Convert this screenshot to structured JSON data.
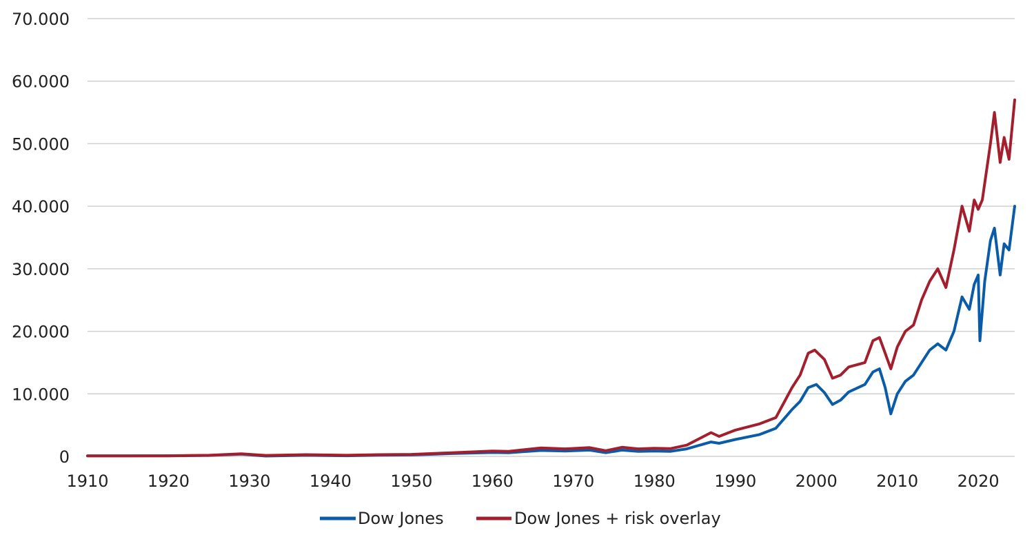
{
  "chart_data": {
    "type": "line",
    "title": "",
    "xlabel": "",
    "ylabel": "",
    "xlim": [
      1910,
      2024.5
    ],
    "ylim": [
      0,
      70000
    ],
    "grid": true,
    "legend_position": "bottom",
    "y_ticks": [
      0,
      10000,
      20000,
      30000,
      40000,
      50000,
      60000,
      70000
    ],
    "y_tick_labels": [
      "0",
      "10.000",
      "20.000",
      "30.000",
      "40.000",
      "50.000",
      "60.000",
      "70.000"
    ],
    "x_ticks": [
      1910,
      1920,
      1930,
      1940,
      1950,
      1960,
      1970,
      1980,
      1990,
      2000,
      2010,
      2020
    ],
    "x_tick_labels": [
      "1910",
      "1920",
      "1930",
      "1940",
      "1950",
      "1960",
      "1970",
      "1980",
      "1990",
      "2000",
      "2010",
      "2020"
    ],
    "series": [
      {
        "name": "Dow Jones",
        "color": "#0a5ca8",
        "points": [
          [
            1910,
            80
          ],
          [
            1915,
            75
          ],
          [
            1920,
            85
          ],
          [
            1925,
            150
          ],
          [
            1929,
            350
          ],
          [
            1932,
            60
          ],
          [
            1937,
            180
          ],
          [
            1942,
            100
          ],
          [
            1946,
            190
          ],
          [
            1950,
            230
          ],
          [
            1955,
            450
          ],
          [
            1960,
            620
          ],
          [
            1962,
            580
          ],
          [
            1966,
            950
          ],
          [
            1969,
            850
          ],
          [
            1972,
            1000
          ],
          [
            1974,
            580
          ],
          [
            1976,
            1000
          ],
          [
            1978,
            800
          ],
          [
            1980,
            850
          ],
          [
            1982,
            800
          ],
          [
            1984,
            1200
          ],
          [
            1987,
            2300
          ],
          [
            1988,
            2100
          ],
          [
            1990,
            2700
          ],
          [
            1993,
            3500
          ],
          [
            1995,
            4500
          ],
          [
            1997,
            7500
          ],
          [
            1998,
            8800
          ],
          [
            1999,
            11000
          ],
          [
            2000,
            11500
          ],
          [
            2001,
            10200
          ],
          [
            2002,
            8300
          ],
          [
            2003,
            9000
          ],
          [
            2004,
            10300
          ],
          [
            2006,
            11500
          ],
          [
            2007,
            13500
          ],
          [
            2007.8,
            14000
          ],
          [
            2008.5,
            11000
          ],
          [
            2009.2,
            6800
          ],
          [
            2010,
            10000
          ],
          [
            2011,
            12000
          ],
          [
            2012,
            13000
          ],
          [
            2013,
            15000
          ],
          [
            2014,
            17000
          ],
          [
            2015,
            18000
          ],
          [
            2016,
            17000
          ],
          [
            2017,
            20000
          ],
          [
            2018,
            25500
          ],
          [
            2018.9,
            23500
          ],
          [
            2019.5,
            27500
          ],
          [
            2020.0,
            29000
          ],
          [
            2020.2,
            18500
          ],
          [
            2020.8,
            28000
          ],
          [
            2021.5,
            34500
          ],
          [
            2022.0,
            36500
          ],
          [
            2022.7,
            29000
          ],
          [
            2023.2,
            34000
          ],
          [
            2023.8,
            33000
          ],
          [
            2024.5,
            40000
          ]
        ]
      },
      {
        "name": "Dow Jones + risk overlay",
        "color": "#a31f2e",
        "points": [
          [
            1910,
            90
          ],
          [
            1915,
            85
          ],
          [
            1920,
            95
          ],
          [
            1925,
            180
          ],
          [
            1929,
            420
          ],
          [
            1932,
            150
          ],
          [
            1937,
            280
          ],
          [
            1942,
            180
          ],
          [
            1946,
            280
          ],
          [
            1950,
            320
          ],
          [
            1955,
            580
          ],
          [
            1960,
            850
          ],
          [
            1962,
            800
          ],
          [
            1966,
            1350
          ],
          [
            1969,
            1200
          ],
          [
            1972,
            1400
          ],
          [
            1974,
            900
          ],
          [
            1976,
            1450
          ],
          [
            1978,
            1200
          ],
          [
            1980,
            1300
          ],
          [
            1982,
            1250
          ],
          [
            1984,
            1800
          ],
          [
            1987,
            3800
          ],
          [
            1988,
            3200
          ],
          [
            1990,
            4200
          ],
          [
            1993,
            5200
          ],
          [
            1995,
            6200
          ],
          [
            1997,
            11000
          ],
          [
            1998,
            13000
          ],
          [
            1999,
            16500
          ],
          [
            1999.8,
            17000
          ],
          [
            2001,
            15500
          ],
          [
            2002,
            12500
          ],
          [
            2003,
            13000
          ],
          [
            2004,
            14300
          ],
          [
            2006,
            15000
          ],
          [
            2007,
            18500
          ],
          [
            2007.8,
            19000
          ],
          [
            2008.5,
            16500
          ],
          [
            2009.2,
            14000
          ],
          [
            2010,
            17500
          ],
          [
            2011,
            20000
          ],
          [
            2012,
            21000
          ],
          [
            2013,
            25000
          ],
          [
            2014,
            28000
          ],
          [
            2015,
            30000
          ],
          [
            2016,
            27000
          ],
          [
            2017,
            33000
          ],
          [
            2018,
            40000
          ],
          [
            2018.9,
            36000
          ],
          [
            2019.5,
            41000
          ],
          [
            2020.0,
            39500
          ],
          [
            2020.5,
            41000
          ],
          [
            2021.5,
            50000
          ],
          [
            2022.0,
            55000
          ],
          [
            2022.7,
            47000
          ],
          [
            2023.2,
            51000
          ],
          [
            2023.8,
            47500
          ],
          [
            2024.5,
            57000
          ]
        ]
      }
    ]
  }
}
